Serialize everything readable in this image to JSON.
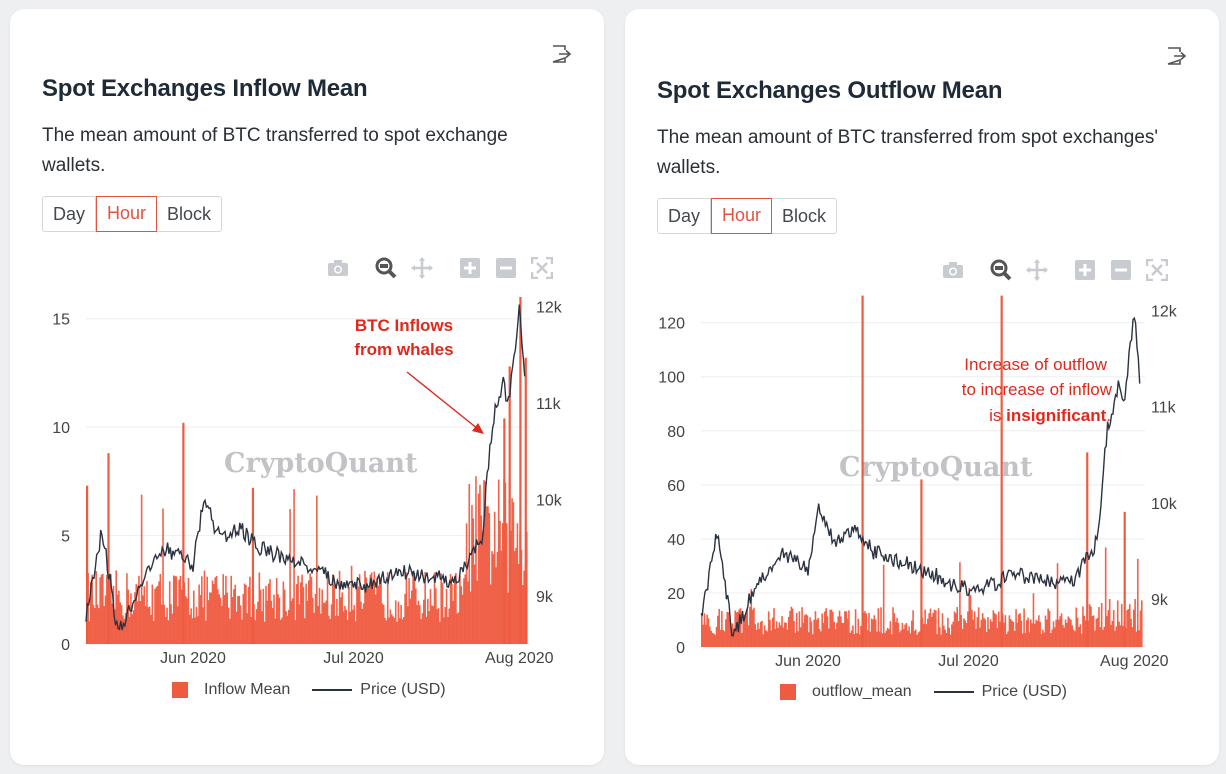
{
  "colors": {
    "bar": "#ef5b40",
    "line": "#2b3240",
    "accent": "#e2543f",
    "annotation": "#e0281d",
    "grid": "#eceef1",
    "watermark": "#b7b9bd"
  },
  "toolbar_icons": [
    "camera-icon",
    "zoom-icon",
    "pan-icon",
    "zoom-in-icon",
    "zoom-out-icon",
    "autoscale-icon"
  ],
  "left": {
    "title": "Spot Exchanges Inflow Mean",
    "description": "The mean amount of BTC transferred to spot exchange wallets.",
    "buttons": [
      "Day",
      "Hour",
      "Block"
    ],
    "active_button": "Hour",
    "watermark": "CryptoQuant",
    "annotation_line1": "BTC Inflows",
    "annotation_line2": "from whales",
    "legend_bar": "Inflow Mean",
    "legend_line": "Price (USD)"
  },
  "right": {
    "title": "Spot Exchanges Outflow Mean",
    "description": "The mean amount of BTC transferred from spot exchanges' wallets.",
    "buttons": [
      "Day",
      "Hour",
      "Block"
    ],
    "active_button": "Hour",
    "watermark": "CryptoQuant",
    "annotation_line1": "Increase of outflow",
    "annotation_line2": "to increase of inflow",
    "annotation_line3_prefix": "is ",
    "annotation_line3_bold": "insignificant",
    "annotation_line3_suffix": ".",
    "legend_bar": "outflow_mean",
    "legend_line": "Price (USD)"
  },
  "chart_data": [
    {
      "type": "bar",
      "x_ticks": [
        "Jun 2020",
        "Jul 2020",
        "Aug 2020"
      ],
      "x_start": "2020-05-12",
      "x_end": "2020-08-03",
      "y_ticks": [
        "0",
        "5",
        "10",
        "15"
      ],
      "ylim": [
        0,
        16
      ],
      "y2_ticks": [
        "9k",
        "10k",
        "11k",
        "12k"
      ],
      "y2lim": [
        8500,
        12100
      ],
      "series": [
        {
          "name": "Inflow Mean",
          "kind": "bar",
          "peaks": [
            {
              "date": "2020-05-12",
              "value": 7.3
            },
            {
              "date": "2020-05-16",
              "value": 8.8
            },
            {
              "date": "2020-05-30",
              "value": 10.2
            },
            {
              "date": "2020-06-12",
              "value": 7.2
            },
            {
              "date": "2020-07-29",
              "value": 10.4
            },
            {
              "date": "2020-07-30",
              "value": 12.8
            },
            {
              "date": "2020-08-01",
              "value": 16.0
            },
            {
              "date": "2020-08-02",
              "value": 13.2
            }
          ]
        },
        {
          "name": "Price (USD)",
          "kind": "line",
          "points": [
            {
              "date": "2020-05-12",
              "value": 8800
            },
            {
              "date": "2020-05-15",
              "value": 9700
            },
            {
              "date": "2020-05-18",
              "value": 8600
            },
            {
              "date": "2020-05-22",
              "value": 9100
            },
            {
              "date": "2020-05-27",
              "value": 9500
            },
            {
              "date": "2020-06-01",
              "value": 9300
            },
            {
              "date": "2020-06-03",
              "value": 10000
            },
            {
              "date": "2020-06-06",
              "value": 9600
            },
            {
              "date": "2020-06-10",
              "value": 9700
            },
            {
              "date": "2020-06-13",
              "value": 9500
            },
            {
              "date": "2020-06-18",
              "value": 9400
            },
            {
              "date": "2020-06-23",
              "value": 9300
            },
            {
              "date": "2020-06-28",
              "value": 9150
            },
            {
              "date": "2020-07-03",
              "value": 9100
            },
            {
              "date": "2020-07-10",
              "value": 9250
            },
            {
              "date": "2020-07-15",
              "value": 9200
            },
            {
              "date": "2020-07-20",
              "value": 9150
            },
            {
              "date": "2020-07-22",
              "value": 9300
            },
            {
              "date": "2020-07-25",
              "value": 9600
            },
            {
              "date": "2020-07-27",
              "value": 10800
            },
            {
              "date": "2020-07-29",
              "value": 11200
            },
            {
              "date": "2020-07-30",
              "value": 11000
            },
            {
              "date": "2020-08-01",
              "value": 12000
            },
            {
              "date": "2020-08-02",
              "value": 11300
            }
          ]
        }
      ]
    },
    {
      "type": "bar",
      "x_ticks": [
        "Jun 2020",
        "Jul 2020",
        "Aug 2020"
      ],
      "x_start": "2020-05-12",
      "x_end": "2020-08-03",
      "y_ticks": [
        "0",
        "20",
        "40",
        "60",
        "80",
        "100",
        "120"
      ],
      "ylim": [
        0,
        128
      ],
      "y2_ticks": [
        "9k",
        "10k",
        "11k",
        "12k"
      ],
      "y2lim": [
        8500,
        12100
      ],
      "series": [
        {
          "name": "outflow_mean",
          "kind": "bar",
          "peaks": [
            {
              "date": "2020-06-11",
              "value": 130.0
            },
            {
              "date": "2020-06-22",
              "value": 62.0
            },
            {
              "date": "2020-07-07",
              "value": 130.0
            },
            {
              "date": "2020-07-23",
              "value": 72.0
            },
            {
              "date": "2020-07-30",
              "value": 50.0
            }
          ]
        },
        {
          "name": "Price (USD)",
          "kind": "line",
          "points": [
            {
              "date": "2020-05-12",
              "value": 8800
            },
            {
              "date": "2020-05-15",
              "value": 9700
            },
            {
              "date": "2020-05-18",
              "value": 8600
            },
            {
              "date": "2020-05-22",
              "value": 9100
            },
            {
              "date": "2020-05-27",
              "value": 9500
            },
            {
              "date": "2020-06-01",
              "value": 9300
            },
            {
              "date": "2020-06-03",
              "value": 10000
            },
            {
              "date": "2020-06-06",
              "value": 9600
            },
            {
              "date": "2020-06-10",
              "value": 9700
            },
            {
              "date": "2020-06-13",
              "value": 9500
            },
            {
              "date": "2020-06-18",
              "value": 9400
            },
            {
              "date": "2020-06-23",
              "value": 9300
            },
            {
              "date": "2020-06-28",
              "value": 9150
            },
            {
              "date": "2020-07-03",
              "value": 9100
            },
            {
              "date": "2020-07-10",
              "value": 9250
            },
            {
              "date": "2020-07-15",
              "value": 9200
            },
            {
              "date": "2020-07-20",
              "value": 9150
            },
            {
              "date": "2020-07-22",
              "value": 9300
            },
            {
              "date": "2020-07-25",
              "value": 9600
            },
            {
              "date": "2020-07-27",
              "value": 10800
            },
            {
              "date": "2020-07-29",
              "value": 11200
            },
            {
              "date": "2020-07-30",
              "value": 11000
            },
            {
              "date": "2020-08-01",
              "value": 12000
            },
            {
              "date": "2020-08-02",
              "value": 11300
            }
          ]
        }
      ]
    }
  ]
}
